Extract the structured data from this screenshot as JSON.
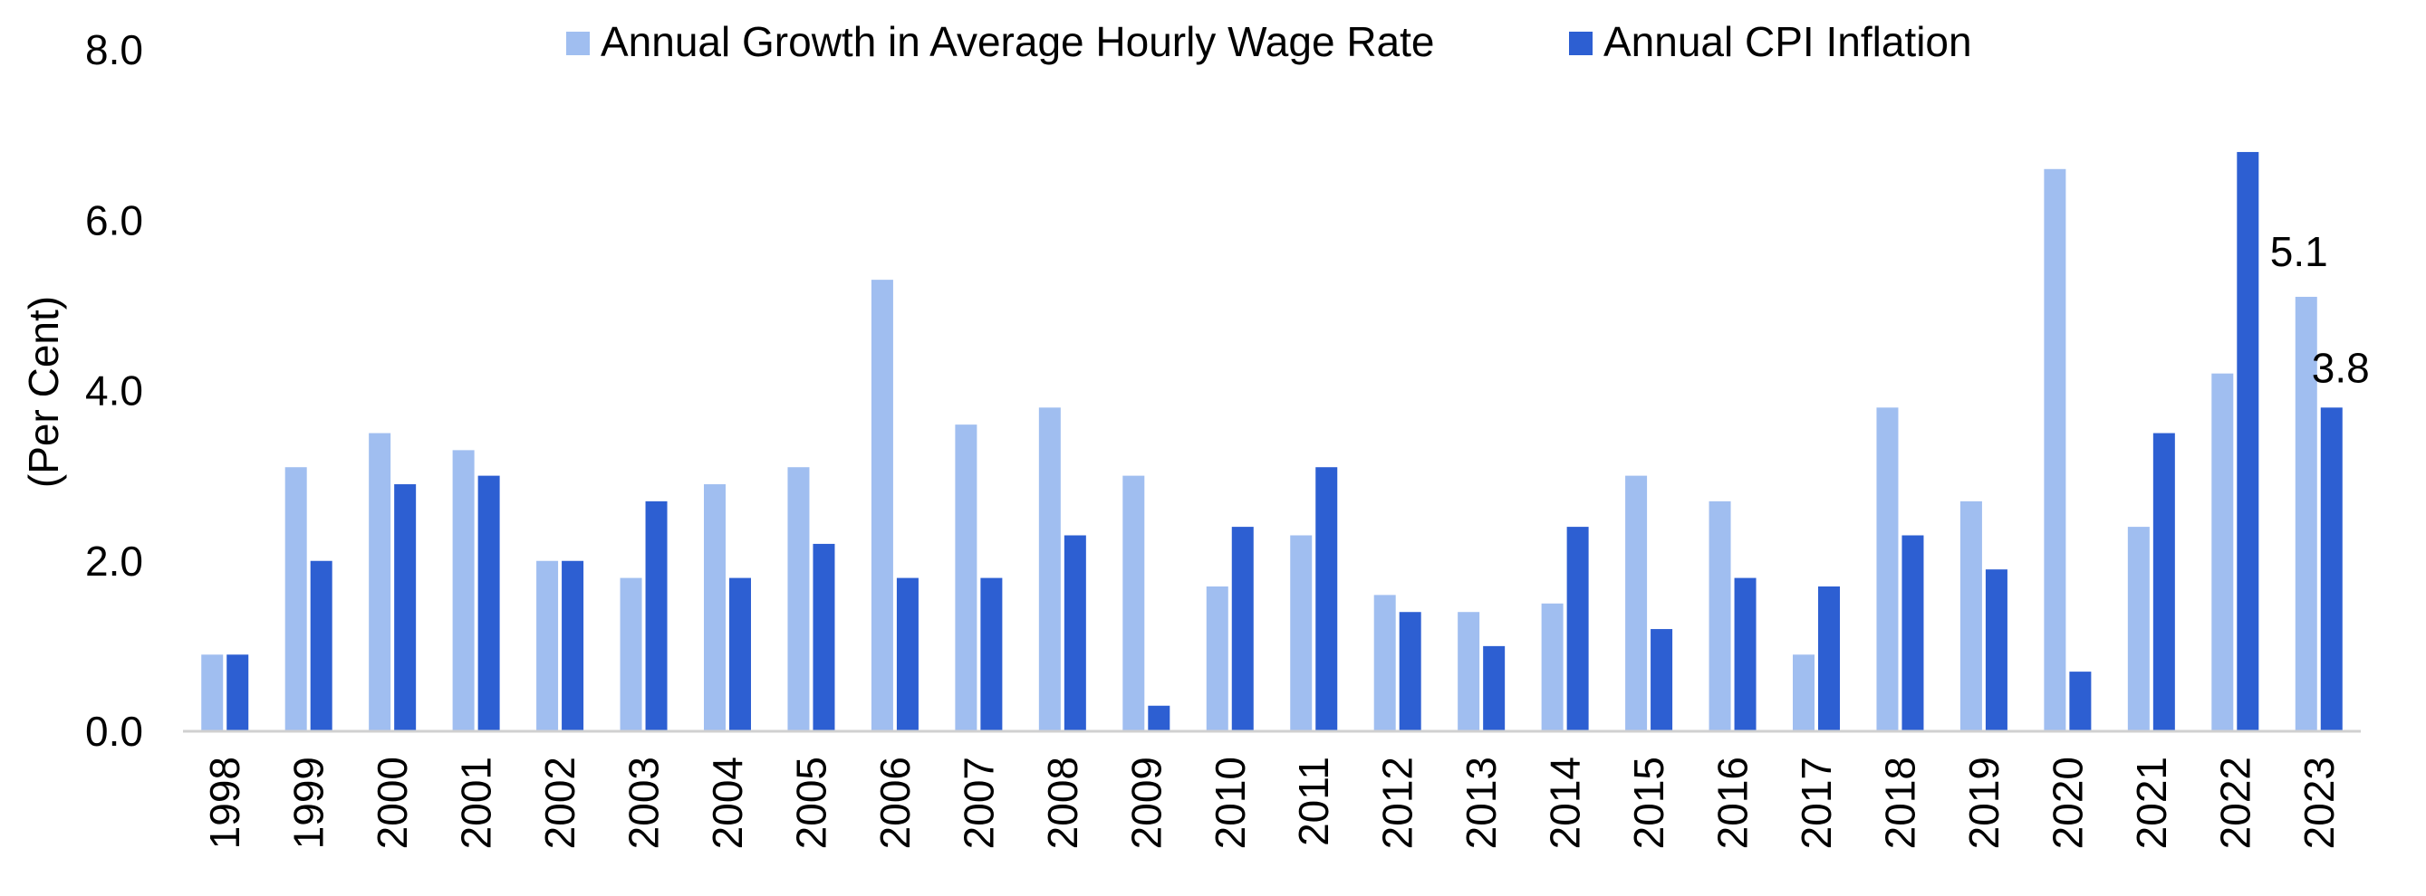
{
  "chart_data": {
    "type": "bar",
    "ylabel": "(Per Cent)",
    "xlabel": "",
    "ylim": [
      0,
      8
    ],
    "yticks": [
      "0.0",
      "2.0",
      "4.0",
      "6.0",
      "8.0"
    ],
    "ytick_values": [
      0,
      2,
      4,
      6,
      8
    ],
    "grid": false,
    "legend_position": "top",
    "categories": [
      "1998",
      "1999",
      "2000",
      "2001",
      "2002",
      "2003",
      "2004",
      "2005",
      "2006",
      "2007",
      "2008",
      "2009",
      "2010",
      "2011",
      "2012",
      "2013",
      "2014",
      "2015",
      "2016",
      "2017",
      "2018",
      "2019",
      "2020",
      "2021",
      "2022",
      "2023"
    ],
    "series": [
      {
        "name": "Annual Growth in Average Hourly Wage Rate",
        "color": "#A0BEF0",
        "values": [
          0.9,
          3.1,
          3.5,
          3.3,
          2.0,
          1.8,
          2.9,
          3.1,
          5.3,
          3.6,
          3.8,
          3.0,
          1.7,
          2.3,
          1.6,
          1.4,
          1.5,
          3.0,
          2.7,
          0.9,
          3.8,
          2.7,
          6.6,
          2.4,
          4.2,
          5.1
        ]
      },
      {
        "name": "Annual CPI Inflation",
        "color": "#2D5FD2",
        "values": [
          0.9,
          2.0,
          2.9,
          3.0,
          2.0,
          2.7,
          1.8,
          2.2,
          1.8,
          1.8,
          2.3,
          0.3,
          2.4,
          3.1,
          1.4,
          1.0,
          2.4,
          1.2,
          1.8,
          1.7,
          2.3,
          1.9,
          0.7,
          3.5,
          6.8,
          3.8
        ]
      }
    ],
    "annotations": [
      {
        "text": "5.1",
        "category": "2023",
        "series": 0
      },
      {
        "text": "3.8",
        "category": "2023",
        "series": 1
      }
    ]
  }
}
